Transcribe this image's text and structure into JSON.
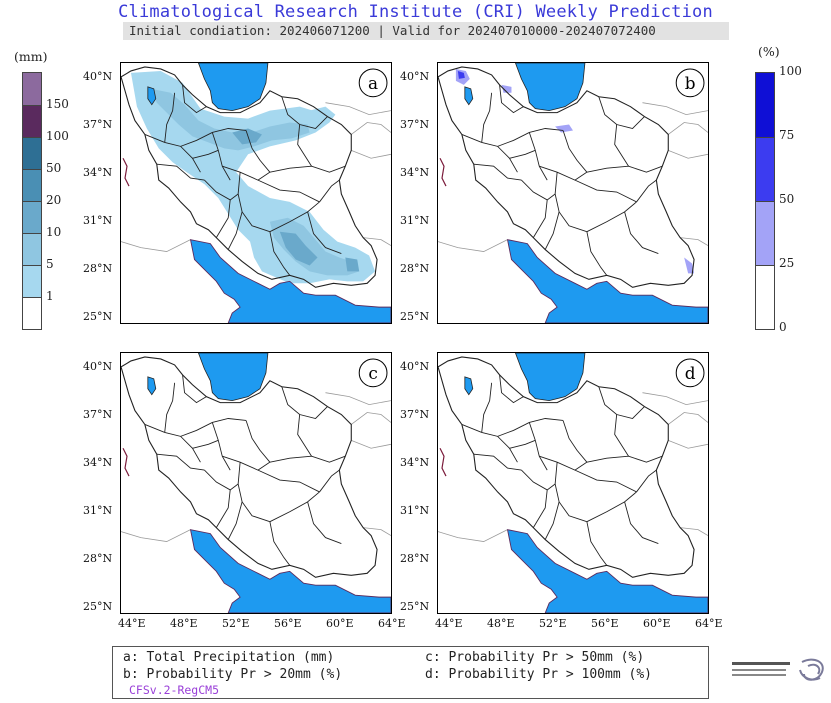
{
  "header": {
    "title": "Climatological Research Institute (CRI) Weekly Prediction",
    "subtitle": "Initial condiation: 202406071200 | Valid for 202407010000-202407072400"
  },
  "left_colorbar": {
    "unit": "(mm)",
    "levels": [
      "1",
      "5",
      "10",
      "20",
      "50",
      "100",
      "150"
    ],
    "colors": [
      "#ffffff",
      "#a6d8ef",
      "#8fc6e1",
      "#6aa9cb",
      "#4a8fb4",
      "#2e6f94",
      "#5a2a5e",
      "#8c6a9e"
    ]
  },
  "right_colorbar": {
    "unit": "(%)",
    "levels": [
      "0",
      "25",
      "50",
      "75",
      "100"
    ],
    "colors": [
      "#ffffff",
      "#a3a3f7",
      "#3c3cf0",
      "#0f0fd6"
    ]
  },
  "panels": [
    {
      "label": "a"
    },
    {
      "label": "b"
    },
    {
      "label": "c"
    },
    {
      "label": "d"
    }
  ],
  "lat_labels": [
    "40°N",
    "37°N",
    "34°N",
    "31°N",
    "28°N",
    "25°N"
  ],
  "lon_labels": [
    "44°E",
    "48°E",
    "52°E",
    "56°E",
    "60°E",
    "64°E"
  ],
  "legend": {
    "a": "a: Total Precipitation (mm)",
    "b": "b: Probability Pr > 20mm (%)",
    "c": "c: Probability Pr > 50mm (%)",
    "d": "d: Probability Pr > 100mm (%)",
    "model": "CFSv.2-RegCM5"
  },
  "colors": {
    "sea": "#1e9af0",
    "border": "#222222",
    "title": "#3a3ad8",
    "model_text": "#9a40d8"
  },
  "icons": {
    "logo": "institute-logo-icon"
  }
}
